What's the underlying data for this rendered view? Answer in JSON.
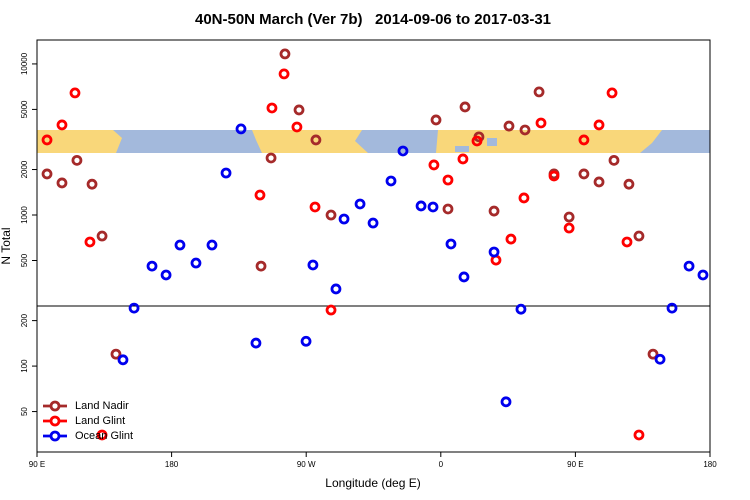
{
  "chart_data": {
    "type": "scatter",
    "title": "40N-50N March (Ver 7b)   2014-09-06 to 2017-03-31",
    "xlabel": "Longitude (deg E)",
    "ylabel": "N Total",
    "log_y": true,
    "xlim": [
      90,
      540
    ],
    "ylim": [
      27,
      14400
    ],
    "xticks": [
      {
        "value": 90,
        "label": "90 E"
      },
      180,
      {
        "value": 270,
        "label": "90 W"
      },
      {
        "value": 360,
        "label": "0"
      },
      {
        "value": 450,
        "label": "90 E"
      },
      {
        "value": 540,
        "label": "180"
      }
    ],
    "yticks": [
      50,
      100,
      200,
      500,
      1000,
      2000,
      5000,
      10000
    ],
    "hline": 250,
    "legend": "bottomleft",
    "series": [
      {
        "name": "Land Nadir",
        "color": "#a52a2a",
        "x": [
          96.7,
          106.7,
          116.7,
          126.8,
          133.5,
          142.8,
          239.8,
          246.5,
          255.8,
          265.2,
          276.5,
          286.6,
          356.8,
          364.8,
          376.2,
          385.5,
          395.6,
          405.6,
          416.3,
          425.7,
          435.7,
          445.8,
          455.7,
          465.8,
          475.8,
          485.8,
          492.5,
          501.9
        ],
        "values": [
          1870,
          1630,
          2300,
          1600,
          726,
          120,
          459,
          2385,
          11650,
          4960,
          3140,
          1000,
          4260,
          1096,
          5190,
          3290,
          1062,
          3880,
          3655,
          6530,
          1870,
          970,
          1870,
          1655,
          2300,
          1600,
          726,
          120
        ]
      },
      {
        "name": "Land Glint",
        "color": "#ff0000",
        "x": [
          96.7,
          106.7,
          115.4,
          125.4,
          133.5,
          239.1,
          247.1,
          255.2,
          263.8,
          275.9,
          286.6,
          355.4,
          364.8,
          374.8,
          384.2,
          406.9,
          415.6,
          396.9,
          427.0,
          435.7,
          445.8,
          455.7,
          465.8,
          474.5,
          484.5,
          492.5
        ],
        "values": [
          3140,
          3945,
          6430,
          663,
          35,
          1356,
          5110,
          8590,
          3825,
          1130,
          235,
          2145,
          1705,
          2350,
          3090,
          693,
          1297,
          503,
          4065,
          1813,
          820,
          3140,
          3945,
          6430,
          663,
          35
        ]
      },
      {
        "name": "Ocean Glint",
        "color": "#0000ee",
        "x": [
          147.5,
          154.9,
          166.9,
          176.3,
          185.6,
          196.3,
          207.0,
          216.4,
          226.4,
          236.4,
          269.9,
          274.5,
          289.9,
          295.3,
          306.0,
          314.7,
          326.7,
          334.7,
          346.8,
          354.8,
          366.8,
          375.5,
          395.6,
          403.6,
          413.6,
          506.6,
          514.6,
          526.0,
          535.3
        ],
        "values": [
          110,
          242,
          459,
          401,
          633,
          481,
          633,
          1897,
          3715,
          142,
          146,
          467,
          324,
          941,
          1183,
          885,
          1680,
          2654,
          1148,
          1130,
          643,
          389,
          569,
          58,
          238,
          111,
          242,
          459,
          401
        ]
      }
    ]
  }
}
